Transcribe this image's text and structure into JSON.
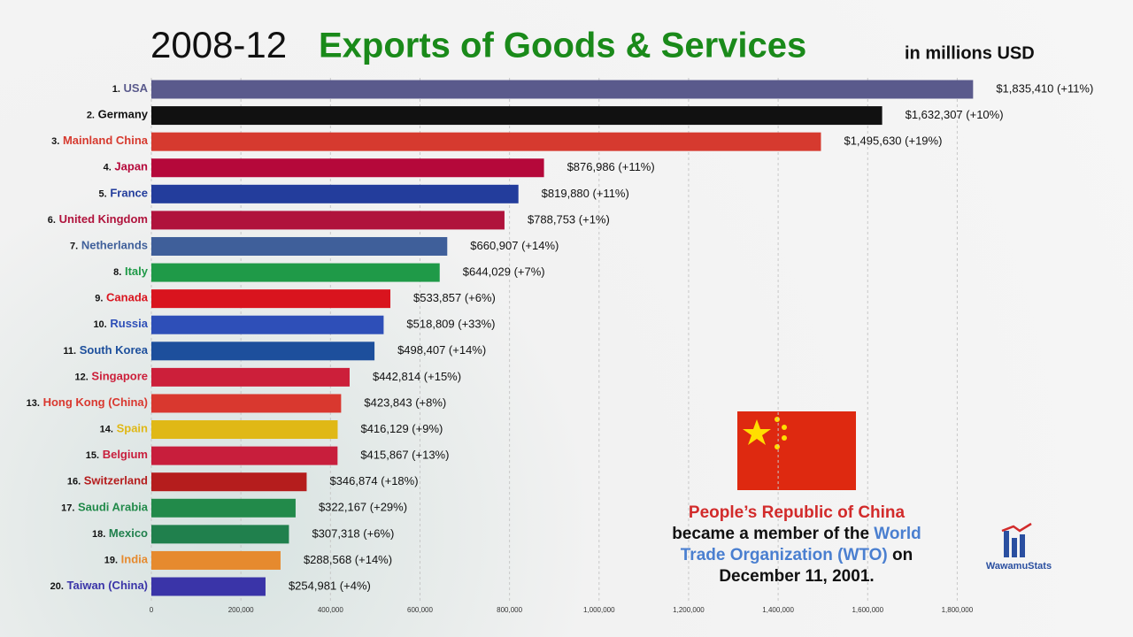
{
  "chart_data": {
    "type": "hbar",
    "title_period": "2008-12",
    "title": "Exports of Goods & Services",
    "subtitle": "in millions USD",
    "rank_labels": [
      "1.",
      "2.",
      "3.",
      "4.",
      "5.",
      "6.",
      "7.",
      "8.",
      "9.",
      "10.",
      "11.",
      "12.",
      "13.",
      "14.",
      "15.",
      "16.",
      "17.",
      "18.",
      "19.",
      "20."
    ],
    "categories": [
      "USA",
      "Germany",
      "Mainland China",
      "Japan",
      "France",
      "United Kingdom",
      "Netherlands",
      "Italy",
      "Canada",
      "Russia",
      "South Korea",
      "Singapore",
      "Hong Kong (China)",
      "Spain",
      "Belgium",
      "Switzerland",
      "Saudi Arabia",
      "Mexico",
      "India",
      "Taiwan (China)"
    ],
    "values": [
      1835410,
      1632307,
      1495630,
      876986,
      819880,
      788753,
      660907,
      644029,
      533857,
      518809,
      498407,
      442814,
      423843,
      416129,
      415867,
      346874,
      322167,
      307318,
      288568,
      254981
    ],
    "value_labels": [
      "$1,835,410 (+11%)",
      "$1,632,307 (+10%)",
      "$1,495,630 (+19%)",
      "$876,986 (+11%)",
      "$819,880 (+11%)",
      "$788,753 (+1%)",
      "$660,907 (+14%)",
      "$644,029 (+7%)",
      "$533,857 (+6%)",
      "$518,809 (+33%)",
      "$498,407 (+14%)",
      "$442,814 (+15%)",
      "$423,843 (+8%)",
      "$416,129 (+9%)",
      "$415,867 (+13%)",
      "$346,874 (+18%)",
      "$322,167 (+29%)",
      "$307,318 (+6%)",
      "$288,568 (+14%)",
      "$254,981 (+4%)"
    ],
    "colors": [
      "#5a5a8c",
      "#111111",
      "#d63a2f",
      "#b5083a",
      "#233d9c",
      "#b0133c",
      "#3f5f9a",
      "#1f9a48",
      "#d9141e",
      "#2e4fb8",
      "#1d4f9c",
      "#cc1f3a",
      "#d9382f",
      "#e0b816",
      "#c81e3c",
      "#b51d1d",
      "#228a4a",
      "#20804d",
      "#e68a2e",
      "#3a34a8"
    ],
    "xlim": [
      0,
      1900000
    ],
    "xticks": [
      0,
      {
        "value": 200000,
        "label": "200,000"
      },
      {
        "value": 400000,
        "label": "400,000"
      },
      {
        "value": 600000,
        "label": "600,000"
      },
      {
        "value": 800000,
        "label": "800,000"
      },
      {
        "value": 1000000,
        "label": "1,000,000"
      },
      {
        "value": 1200000,
        "label": "1,200,000"
      },
      {
        "value": 1400000,
        "label": "1,400,000"
      },
      {
        "value": 1600000,
        "label": "1,600,000"
      },
      {
        "value": 1800000,
        "label": "1,800,000"
      }
    ],
    "grid": true
  },
  "annotation": {
    "title": "People’s Republic of China",
    "lines": [
      [
        "became a member of the ",
        "World"
      ],
      [
        "Trade Organization (WTO)",
        " on"
      ],
      [
        "December 11, 2001."
      ]
    ]
  },
  "logo": "WawamuStats"
}
